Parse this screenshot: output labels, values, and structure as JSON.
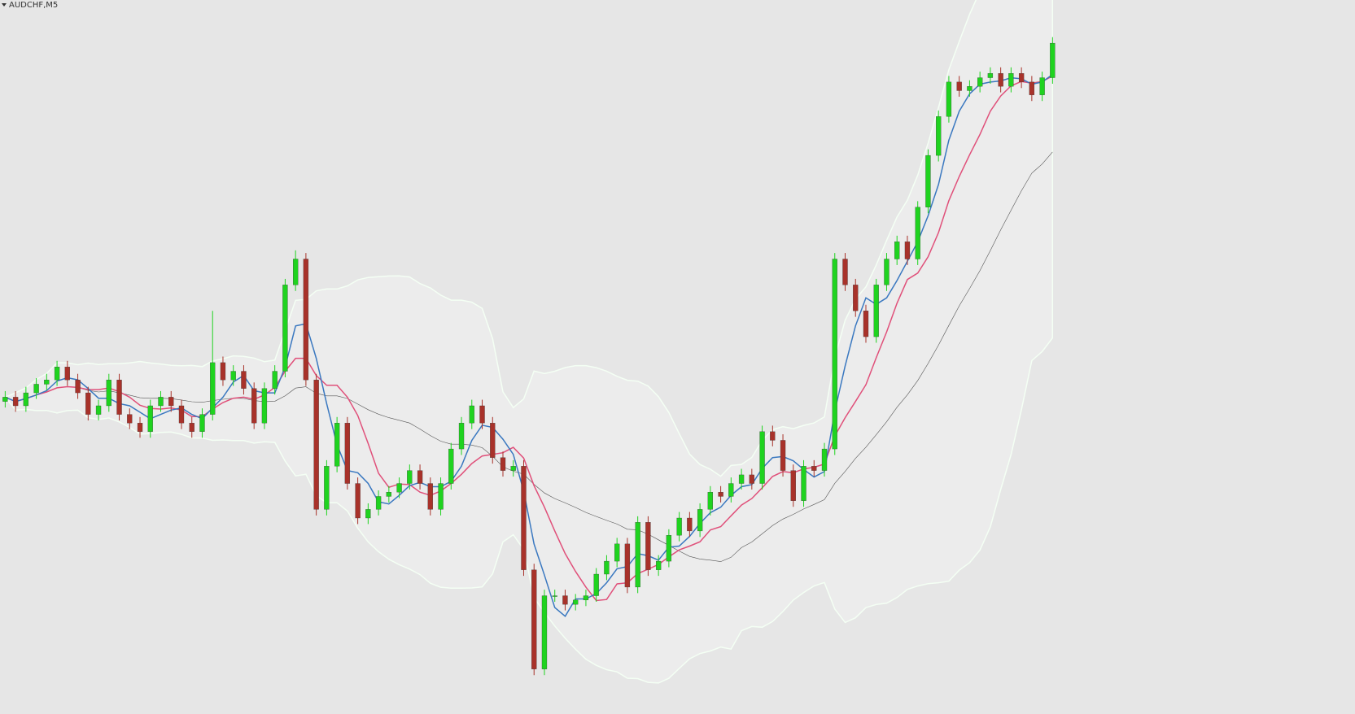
{
  "chart_data": {
    "type": "candlestick",
    "title": "AUDCHF,M5",
    "up_color": "#1fd31f",
    "down_color": "#a8322a",
    "ylim": [
      0,
      827
    ],
    "open": [
      362,
      367,
      357,
      372,
      382,
      387,
      402,
      387,
      372,
      347,
      357,
      387,
      347,
      337,
      327,
      357,
      367,
      357,
      337,
      327,
      347,
      407,
      387,
      397,
      377,
      337,
      377,
      397,
      497,
      527,
      387,
      237,
      287,
      337,
      267,
      227,
      237,
      252,
      257,
      267,
      282,
      267,
      237,
      267,
      307,
      337,
      357,
      337,
      297,
      282,
      287,
      167,
      52,
      137,
      137,
      127,
      132,
      137,
      162,
      177,
      197,
      147,
      222,
      167,
      177,
      207,
      227,
      212,
      237,
      257,
      252,
      267,
      277,
      267,
      327,
      317,
      282,
      247,
      287,
      282,
      307,
      527,
      497,
      467,
      437,
      497,
      527,
      547,
      527,
      587,
      647,
      692,
      732,
      722,
      727,
      737,
      742,
      727,
      742,
      732,
      717,
      737
    ],
    "high": [
      374,
      374,
      379,
      389,
      394,
      409,
      409,
      394,
      379,
      364,
      394,
      394,
      354,
      344,
      364,
      374,
      374,
      364,
      344,
      354,
      467,
      414,
      404,
      404,
      384,
      384,
      404,
      504,
      537,
      534,
      394,
      294,
      344,
      344,
      274,
      244,
      259,
      264,
      274,
      289,
      289,
      274,
      274,
      314,
      344,
      364,
      364,
      344,
      304,
      294,
      294,
      174,
      144,
      144,
      144,
      139,
      144,
      169,
      184,
      204,
      204,
      229,
      229,
      184,
      214,
      234,
      234,
      244,
      264,
      264,
      274,
      284,
      284,
      334,
      334,
      324,
      289,
      294,
      294,
      314,
      534,
      534,
      504,
      474,
      504,
      534,
      554,
      554,
      594,
      654,
      699,
      739,
      739,
      734,
      744,
      749,
      749,
      749,
      749,
      739,
      744,
      784
    ],
    "low": [
      355,
      350,
      350,
      365,
      375,
      380,
      380,
      365,
      340,
      340,
      350,
      340,
      330,
      320,
      320,
      350,
      350,
      330,
      320,
      320,
      340,
      380,
      380,
      370,
      330,
      330,
      370,
      390,
      490,
      380,
      230,
      230,
      280,
      260,
      220,
      220,
      230,
      245,
      250,
      260,
      260,
      230,
      230,
      260,
      300,
      330,
      330,
      290,
      275,
      275,
      160,
      45,
      45,
      130,
      120,
      120,
      125,
      130,
      155,
      170,
      140,
      140,
      160,
      160,
      170,
      200,
      205,
      205,
      230,
      245,
      245,
      260,
      260,
      260,
      310,
      275,
      240,
      240,
      275,
      275,
      300,
      490,
      460,
      430,
      430,
      490,
      520,
      520,
      520,
      580,
      640,
      685,
      715,
      715,
      720,
      730,
      720,
      720,
      725,
      710,
      710,
      730
    ],
    "close": [
      367,
      357,
      372,
      382,
      387,
      402,
      387,
      372,
      347,
      357,
      387,
      347,
      337,
      327,
      357,
      367,
      357,
      337,
      327,
      347,
      407,
      387,
      397,
      377,
      337,
      377,
      397,
      497,
      527,
      387,
      237,
      287,
      337,
      267,
      227,
      237,
      252,
      257,
      267,
      282,
      267,
      237,
      267,
      307,
      337,
      357,
      337,
      297,
      282,
      287,
      167,
      52,
      137,
      137,
      127,
      132,
      137,
      162,
      177,
      197,
      147,
      222,
      167,
      177,
      207,
      227,
      212,
      237,
      257,
      252,
      267,
      277,
      267,
      327,
      317,
      282,
      247,
      287,
      282,
      307,
      527,
      497,
      467,
      437,
      497,
      527,
      547,
      527,
      587,
      647,
      692,
      732,
      722,
      727,
      737,
      742,
      727,
      742,
      732,
      717,
      737,
      777
    ]
  }
}
